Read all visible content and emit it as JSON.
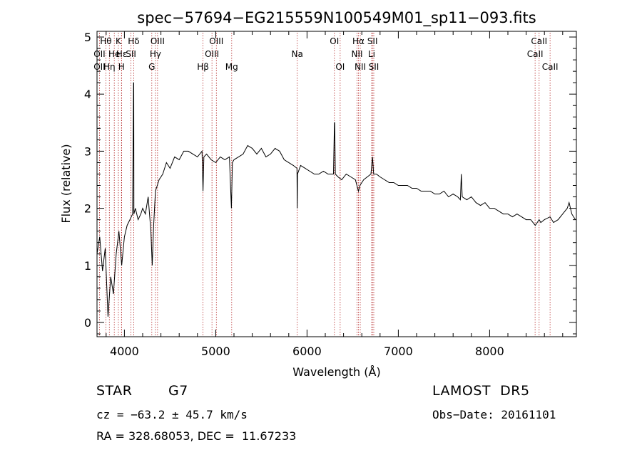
{
  "chart_data": {
    "type": "line",
    "title": "spec−57694−EG215559N100549M01_sp11−093.fits",
    "xlabel": "Wavelength (Å)",
    "ylabel": "Flux (relative)",
    "xlim": [
      3700,
      8950
    ],
    "ylim": [
      -0.25,
      5.1
    ],
    "x_ticks": [
      4000,
      5000,
      6000,
      7000,
      8000
    ],
    "y_ticks": [
      0,
      1,
      2,
      3,
      4,
      5
    ],
    "grid": false,
    "line_color": "#000000",
    "marker_color": "#b22222",
    "series": [
      {
        "x": [
          3700,
          3730,
          3760,
          3790,
          3820,
          3850,
          3880,
          3910,
          3940,
          3970,
          4000,
          4030,
          4060,
          4090,
          4100,
          4102,
          4104,
          4120,
          4150,
          4180,
          4200,
          4230,
          4260,
          4290,
          4305,
          4320,
          4340,
          4360,
          4380,
          4420,
          4460,
          4500,
          4550,
          4600,
          4650,
          4700,
          4750,
          4800,
          4850,
          4861,
          4870,
          4900,
          4950,
          5000,
          5050,
          5100,
          5150,
          5172,
          5183,
          5200,
          5250,
          5300,
          5350,
          5400,
          5450,
          5500,
          5550,
          5600,
          5650,
          5700,
          5750,
          5800,
          5850,
          5890,
          5893,
          5896,
          5930,
          5980,
          6030,
          6080,
          6130,
          6180,
          6230,
          6270,
          6290,
          6300,
          6303,
          6310,
          6340,
          6380,
          6430,
          6480,
          6530,
          6563,
          6580,
          6620,
          6660,
          6700,
          6717,
          6730,
          6760,
          6800,
          6850,
          6900,
          6950,
          7000,
          7050,
          7100,
          7150,
          7200,
          7250,
          7300,
          7350,
          7400,
          7450,
          7500,
          7550,
          7600,
          7650,
          7680,
          7690,
          7700,
          7750,
          7800,
          7850,
          7900,
          7950,
          8000,
          8050,
          8100,
          8150,
          8200,
          8250,
          8300,
          8350,
          8400,
          8450,
          8500,
          8542,
          8560,
          8600,
          8662,
          8700,
          8750,
          8800,
          8850,
          8870,
          8900,
          8940
        ],
        "y": [
          1.2,
          1.5,
          0.9,
          1.3,
          0.1,
          0.8,
          0.5,
          1.2,
          1.6,
          1.0,
          1.5,
          1.7,
          1.8,
          1.9,
          4.2,
          4.2,
          1.9,
          2.0,
          1.8,
          1.9,
          2.0,
          1.9,
          2.2,
          1.6,
          1.0,
          1.7,
          2.3,
          2.4,
          2.5,
          2.6,
          2.8,
          2.7,
          2.9,
          2.85,
          3.0,
          3.0,
          2.95,
          2.9,
          3.0,
          2.3,
          2.9,
          2.95,
          2.85,
          2.8,
          2.9,
          2.85,
          2.9,
          2.0,
          2.8,
          2.85,
          2.9,
          2.95,
          3.1,
          3.05,
          2.95,
          3.05,
          2.9,
          2.95,
          3.05,
          3.0,
          2.85,
          2.8,
          2.75,
          2.7,
          2.0,
          2.6,
          2.75,
          2.7,
          2.65,
          2.6,
          2.6,
          2.65,
          2.6,
          2.6,
          2.6,
          3.5,
          3.5,
          2.6,
          2.55,
          2.5,
          2.6,
          2.55,
          2.5,
          2.3,
          2.4,
          2.5,
          2.55,
          2.6,
          2.9,
          2.6,
          2.6,
          2.55,
          2.5,
          2.45,
          2.45,
          2.4,
          2.4,
          2.4,
          2.35,
          2.35,
          2.3,
          2.3,
          2.3,
          2.25,
          2.25,
          2.3,
          2.2,
          2.25,
          2.2,
          2.15,
          2.6,
          2.2,
          2.15,
          2.2,
          2.1,
          2.05,
          2.1,
          2.0,
          2.0,
          1.95,
          1.9,
          1.9,
          1.85,
          1.9,
          1.85,
          1.8,
          1.8,
          1.7,
          1.8,
          1.75,
          1.8,
          1.85,
          1.75,
          1.8,
          1.9,
          2.0,
          2.1,
          1.9,
          1.8
        ]
      }
    ],
    "line_markers": [
      {
        "x": 3727,
        "label": "OII",
        "row": 2
      },
      {
        "x": 3727,
        "label": "OII",
        "row": 3
      },
      {
        "x": 3797,
        "label": "Hθ",
        "row": 1
      },
      {
        "x": 3835,
        "label": "Hη",
        "row": 3
      },
      {
        "x": 3889,
        "label": "He",
        "row": 2
      },
      {
        "x": 3934,
        "label": "K",
        "row": 1
      },
      {
        "x": 3968,
        "label": "H",
        "row": 3
      },
      {
        "x": 3970,
        "label": "Hε",
        "row": 2
      },
      {
        "x": 4072,
        "label": "SII",
        "row": 2
      },
      {
        "x": 4102,
        "label": "Hδ",
        "row": 1
      },
      {
        "x": 4300,
        "label": "G",
        "row": 3
      },
      {
        "x": 4340,
        "label": "Hγ",
        "row": 2
      },
      {
        "x": 4363,
        "label": "OIII",
        "row": 1
      },
      {
        "x": 4861,
        "label": "Hβ",
        "row": 3
      },
      {
        "x": 4959,
        "label": "OIII",
        "row": 2
      },
      {
        "x": 5007,
        "label": "OIII",
        "row": 1
      },
      {
        "x": 5175,
        "label": "Mg",
        "row": 3
      },
      {
        "x": 5893,
        "label": "Na",
        "row": 2
      },
      {
        "x": 6300,
        "label": "OI",
        "row": 1
      },
      {
        "x": 6363,
        "label": "OI",
        "row": 3
      },
      {
        "x": 6548,
        "label": "NII",
        "row": 2
      },
      {
        "x": 6563,
        "label": "Hα",
        "row": 1
      },
      {
        "x": 6583,
        "label": "NII",
        "row": 3
      },
      {
        "x": 6708,
        "label": "Li",
        "row": 2
      },
      {
        "x": 6717,
        "label": "SII",
        "row": 1
      },
      {
        "x": 6731,
        "label": "SII",
        "row": 3
      },
      {
        "x": 8498,
        "label": "CaII",
        "row": 2
      },
      {
        "x": 8542,
        "label": "CaII",
        "row": 1
      },
      {
        "x": 8662,
        "label": "CaII",
        "row": 3
      }
    ]
  },
  "info": {
    "object_class": "STAR",
    "subclass": "G7",
    "survey": "LAMOST  DR5",
    "redshift_text": "cz = −63.2 ± 45.7 km/s",
    "obs_date_text": "Obs−Date: 20161101",
    "coords_text": "RA = 328.68053, DEC =  11.67233"
  }
}
